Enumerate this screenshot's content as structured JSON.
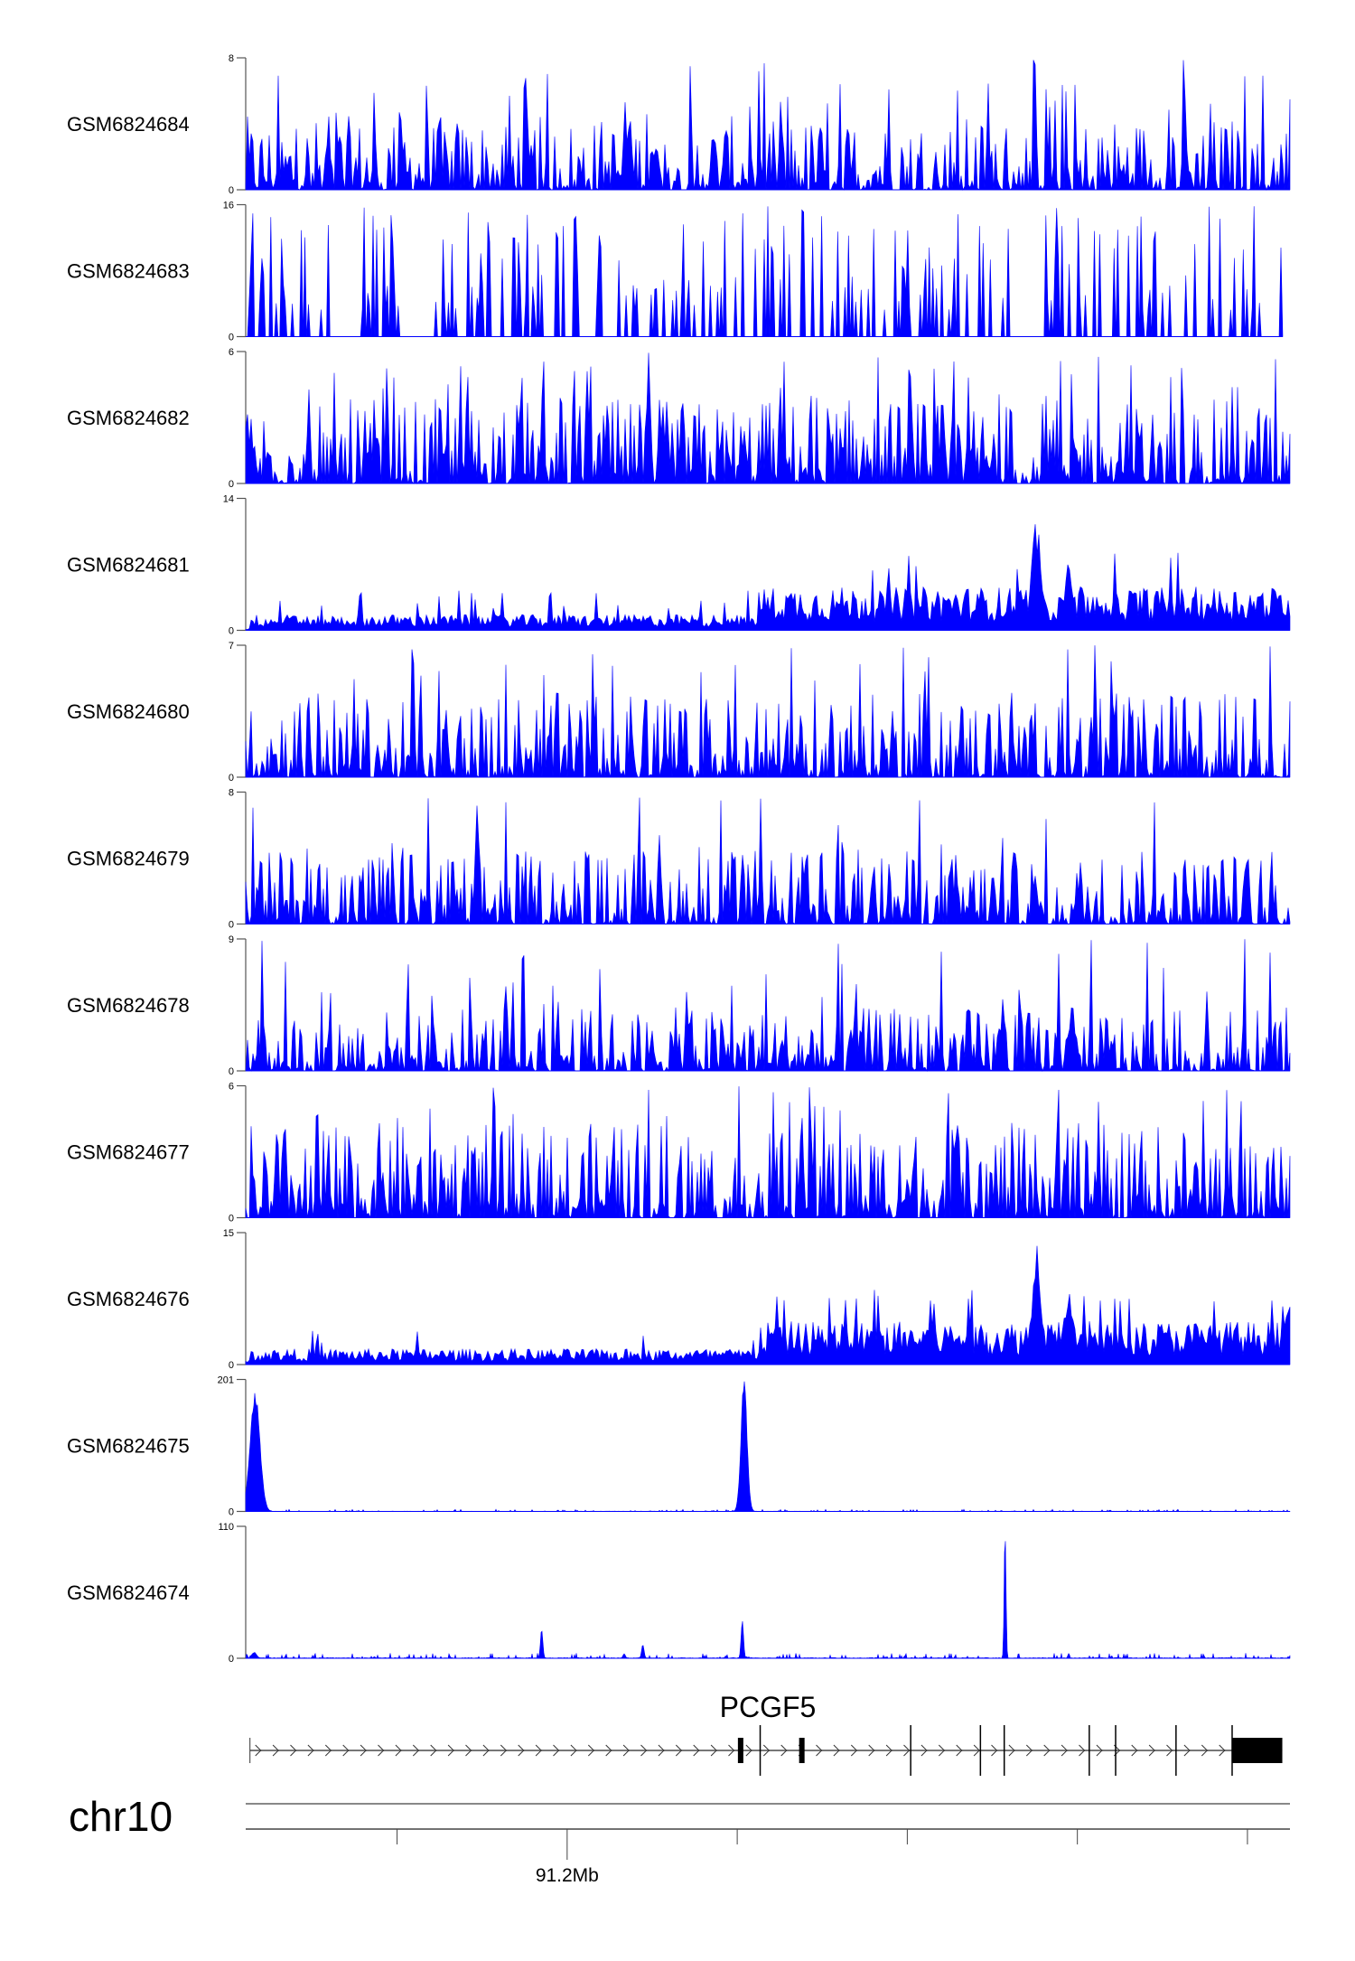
{
  "chart_data": {
    "type": "area",
    "title": "",
    "chromosome": "chr10",
    "xlabel": "91.2Mb",
    "xlim_mb": [
      91.1622,
      91.285
    ],
    "x_ticks_mb": [
      91.18,
      91.2,
      91.22,
      91.24,
      91.26,
      91.28
    ],
    "x_tick_labels": {
      "91.20": "91.2Mb"
    },
    "color": "#0000ff",
    "tracks": [
      {
        "name": "GSM6824684",
        "ylim": [
          0,
          8
        ],
        "ymax_label": "8",
        "ymin_label": "0",
        "style": "noisy",
        "level": 0.35
      },
      {
        "name": "GSM6824683",
        "ylim": [
          0,
          16
        ],
        "ymax_label": "16",
        "ymin_label": "0",
        "style": "sparse",
        "level": 0.4
      },
      {
        "name": "GSM6824682",
        "ylim": [
          0,
          6
        ],
        "ymax_label": "6",
        "ymin_label": "0",
        "style": "noisy",
        "level": 0.4
      },
      {
        "name": "GSM6824681",
        "ylim": [
          0,
          14
        ],
        "ymax_label": "14",
        "ymin_label": "0",
        "style": "broad",
        "level": 0.12,
        "peaks": [
          {
            "mb": 91.2552,
            "value": 14
          },
          {
            "mb": 91.259,
            "value": 9
          }
        ]
      },
      {
        "name": "GSM6824680",
        "ylim": [
          0,
          7
        ],
        "ymax_label": "7",
        "ymin_label": "0",
        "style": "noisy",
        "level": 0.4
      },
      {
        "name": "GSM6824679",
        "ylim": [
          0,
          8
        ],
        "ymax_label": "8",
        "ymin_label": "0",
        "style": "noisy",
        "level": 0.35
      },
      {
        "name": "GSM6824678",
        "ylim": [
          0,
          9
        ],
        "ymax_label": "9",
        "ymin_label": "0",
        "style": "noisy",
        "level": 0.3
      },
      {
        "name": "GSM6824677",
        "ylim": [
          0,
          6
        ],
        "ymax_label": "6",
        "ymin_label": "0",
        "style": "noisy",
        "level": 0.45
      },
      {
        "name": "GSM6824676",
        "ylim": [
          0,
          15
        ],
        "ymax_label": "15",
        "ymin_label": "0",
        "style": "broad",
        "level": 0.15,
        "peaks": [
          {
            "mb": 91.2552,
            "value": 15
          },
          {
            "mb": 91.259,
            "value": 10
          },
          {
            "mb": 91.2848,
            "value": 8
          }
        ]
      },
      {
        "name": "GSM6824675",
        "ylim": [
          0,
          201
        ],
        "ymax_label": "201",
        "ymin_label": "0",
        "style": "peaks",
        "level": 0.004,
        "peaks": [
          {
            "mb": 91.1633,
            "value": 185,
            "width": 0.0008
          },
          {
            "mb": 91.2208,
            "value": 201,
            "width": 0.0005
          }
        ]
      },
      {
        "name": "GSM6824674",
        "ylim": [
          0,
          110
        ],
        "ymax_label": "110",
        "ymin_label": "0",
        "style": "peaks",
        "level": 0.01,
        "peaks": [
          {
            "mb": 91.1632,
            "value": 5,
            "width": 0.0004
          },
          {
            "mb": 91.197,
            "value": 24,
            "width": 0.0002
          },
          {
            "mb": 91.2067,
            "value": 4,
            "width": 0.0002
          },
          {
            "mb": 91.2089,
            "value": 12,
            "width": 0.0002
          },
          {
            "mb": 91.2206,
            "value": 32,
            "width": 0.0002
          },
          {
            "mb": 91.2515,
            "value": 110,
            "width": 0.00015
          }
        ]
      }
    ],
    "gene": {
      "name": "PCGF5",
      "strand": "+",
      "start_mb": 91.1627,
      "end_mb": 91.2841,
      "exons": [
        {
          "mb": 91.2204,
          "kind": "coding"
        },
        {
          "mb": 91.2227,
          "kind": "utr"
        },
        {
          "mb": 91.2276,
          "kind": "coding"
        },
        {
          "mb": 91.2404,
          "kind": "utr"
        },
        {
          "mb": 91.2486,
          "kind": "utr"
        },
        {
          "mb": 91.2514,
          "kind": "utr"
        },
        {
          "mb": 91.2614,
          "kind": "utr"
        },
        {
          "mb": 91.2645,
          "kind": "utr"
        },
        {
          "mb": 91.2716,
          "kind": "utr"
        }
      ],
      "last_exon_mb": [
        91.2782,
        91.2841
      ]
    }
  }
}
